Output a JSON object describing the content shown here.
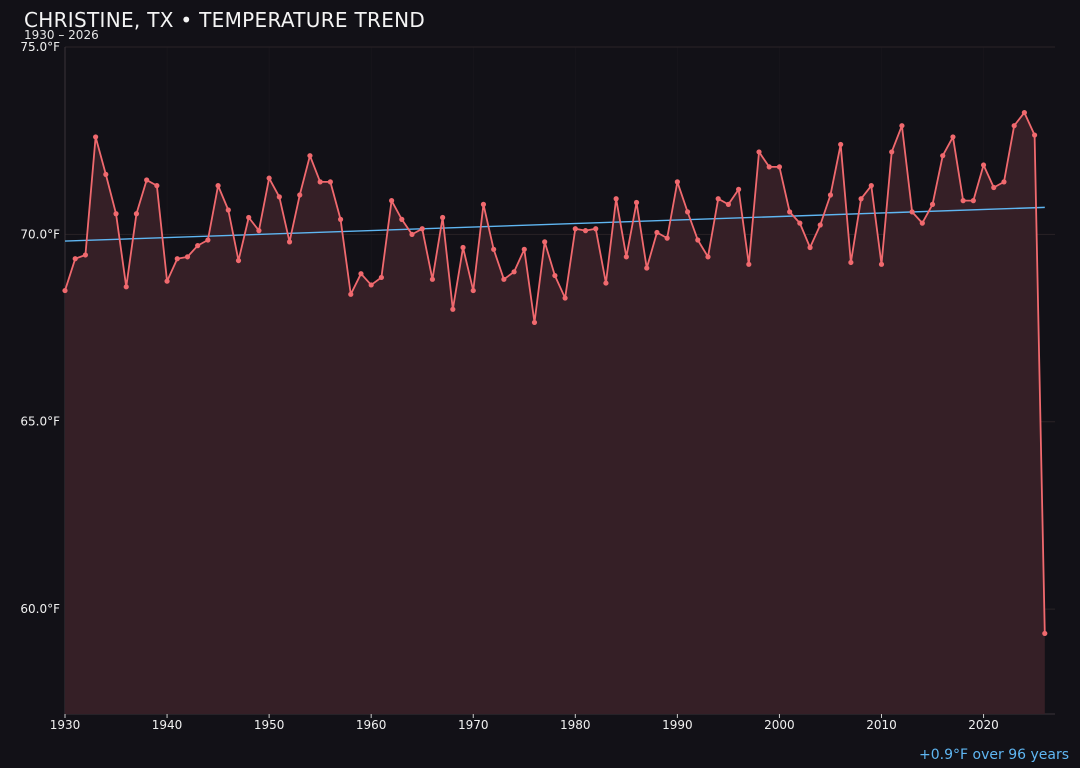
{
  "title": "CHRISTINE, TX • TEMPERATURE TREND",
  "subtitle": "1930 – 2026",
  "summary": "+0.9°F over 96 years",
  "colors": {
    "background": "#121117",
    "series": "#f0696e",
    "area_fill": "#351f26",
    "trend": "#5fb6f2",
    "grid": "#2a2327",
    "tick_text": "#f0f0f0"
  },
  "chart_data": {
    "type": "line",
    "x": [
      1930,
      1931,
      1932,
      1933,
      1934,
      1935,
      1936,
      1937,
      1938,
      1939,
      1940,
      1941,
      1942,
      1943,
      1944,
      1945,
      1946,
      1947,
      1948,
      1949,
      1950,
      1951,
      1952,
      1953,
      1954,
      1955,
      1956,
      1957,
      1958,
      1959,
      1960,
      1961,
      1962,
      1963,
      1964,
      1965,
      1966,
      1967,
      1968,
      1969,
      1970,
      1971,
      1972,
      1973,
      1974,
      1975,
      1976,
      1977,
      1978,
      1979,
      1980,
      1981,
      1982,
      1983,
      1984,
      1985,
      1986,
      1987,
      1988,
      1989,
      1990,
      1991,
      1992,
      1993,
      1994,
      1995,
      1996,
      1997,
      1998,
      1999,
      2000,
      2001,
      2002,
      2003,
      2004,
      2005,
      2006,
      2007,
      2008,
      2009,
      2010,
      2011,
      2012,
      2013,
      2014,
      2015,
      2016,
      2017,
      2018,
      2019,
      2020,
      2021,
      2022,
      2023,
      2024,
      2025,
      2026
    ],
    "series": [
      {
        "values": [
          68.5,
          69.35,
          69.45,
          72.6,
          71.6,
          70.55,
          68.6,
          70.55,
          71.45,
          71.3,
          68.75,
          69.35,
          69.4,
          69.7,
          69.85,
          71.3,
          70.65,
          69.3,
          70.45,
          70.1,
          71.5,
          71.0,
          69.8,
          71.05,
          72.1,
          71.4,
          71.4,
          70.4,
          68.4,
          68.95,
          68.65,
          68.85,
          70.9,
          70.4,
          70.0,
          70.15,
          68.8,
          70.45,
          68.0,
          69.65,
          68.5,
          70.8,
          69.6,
          68.8,
          69.0,
          69.6,
          67.65,
          69.8,
          68.9,
          68.3,
          70.15,
          70.1,
          70.15,
          68.7,
          70.95,
          69.4,
          70.85,
          69.1,
          70.05,
          69.9,
          71.4,
          70.6,
          69.85,
          69.4,
          70.95,
          70.8,
          71.2,
          69.2,
          72.2,
          71.8,
          71.8,
          70.6,
          70.3,
          69.65,
          70.25,
          71.05,
          72.4,
          69.25,
          70.95,
          71.3,
          69.2,
          72.2,
          72.9,
          70.6,
          70.3,
          70.8,
          72.1,
          72.6,
          70.9,
          70.9,
          71.85,
          71.25,
          71.4,
          72.9,
          73.25,
          72.65,
          59.35
        ]
      }
    ],
    "trend": {
      "start": [
        1930,
        69.82
      ],
      "end": [
        2026,
        70.72
      ]
    },
    "xlim": [
      1930,
      2027
    ],
    "ylim": [
      57.2,
      75.0
    ],
    "xticks": [
      1930,
      1940,
      1950,
      1960,
      1970,
      1980,
      1990,
      2000,
      2010,
      2020
    ],
    "xtick_labels": [
      "1930",
      "1940",
      "1950",
      "1960",
      "1970",
      "1980",
      "1990",
      "2000",
      "2010",
      "2020"
    ],
    "yticks": [
      60,
      65,
      70,
      75
    ],
    "ytick_labels": [
      "60.0°F",
      "65.0°F",
      "70.0°F",
      "75.0°F"
    ],
    "grid": true,
    "area_fill": true
  }
}
